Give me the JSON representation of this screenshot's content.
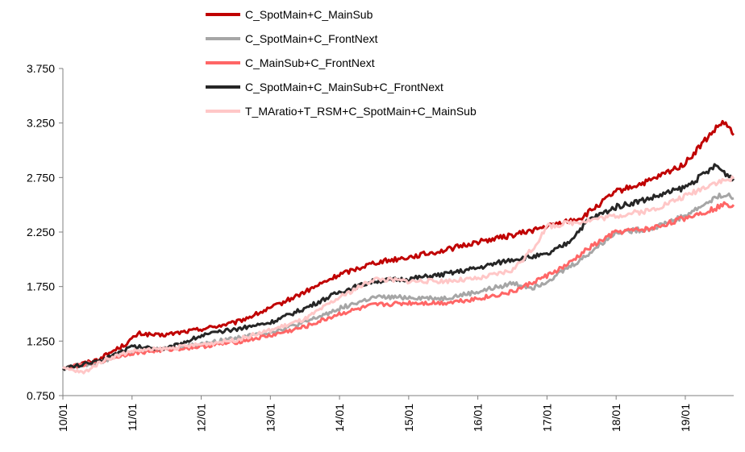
{
  "chart_data": {
    "type": "line",
    "title": "",
    "xlabel": "",
    "ylabel": "",
    "ylim": [
      0.75,
      3.75
    ],
    "xlim": [
      2010.0,
      2019.7
    ],
    "yticks": [
      0.75,
      1.25,
      1.75,
      2.25,
      2.75,
      3.25,
      3.75
    ],
    "ytick_labels": [
      "0.750",
      "1.250",
      "1.750",
      "2.250",
      "2.750",
      "3.250",
      "3.750"
    ],
    "xticks": [
      2010,
      2011,
      2012,
      2013,
      2014,
      2015,
      2016,
      2017,
      2018,
      2019
    ],
    "xtick_labels": [
      "10/01",
      "11/01",
      "12/01",
      "13/01",
      "14/01",
      "15/01",
      "16/01",
      "17/01",
      "18/01",
      "19/01"
    ],
    "grid": false,
    "legend": "top-center",
    "series": [
      {
        "name": "C_SpotMain+C_MainSub",
        "color": "#C00000",
        "x": [
          2010.0,
          2010.5,
          2010.9,
          2011.1,
          2011.4,
          2012.0,
          2012.5,
          2013.0,
          2013.5,
          2014.0,
          2014.5,
          2015.0,
          2015.5,
          2016.0,
          2016.5,
          2017.0,
          2017.5,
          2018.0,
          2018.5,
          2019.0,
          2019.3,
          2019.45,
          2019.55,
          2019.7
        ],
        "y": [
          1.0,
          1.08,
          1.22,
          1.32,
          1.3,
          1.36,
          1.42,
          1.55,
          1.7,
          1.86,
          1.97,
          2.02,
          2.08,
          2.16,
          2.22,
          2.3,
          2.38,
          2.62,
          2.72,
          2.88,
          3.1,
          3.2,
          3.26,
          3.14
        ]
      },
      {
        "name": "C_SpotMain+C_FrontNext",
        "color": "#A6A6A6",
        "x": [
          2010.0,
          2010.5,
          2011.0,
          2011.5,
          2012.0,
          2012.5,
          2013.0,
          2013.5,
          2014.0,
          2014.5,
          2015.0,
          2015.5,
          2016.0,
          2016.5,
          2016.8,
          2017.0,
          2017.5,
          2018.0,
          2018.5,
          2019.0,
          2019.4,
          2019.55,
          2019.7
        ],
        "y": [
          1.0,
          1.05,
          1.15,
          1.18,
          1.22,
          1.28,
          1.33,
          1.42,
          1.55,
          1.65,
          1.65,
          1.64,
          1.7,
          1.78,
          1.74,
          1.8,
          2.0,
          2.25,
          2.28,
          2.4,
          2.55,
          2.6,
          2.56
        ]
      },
      {
        "name": "C_MainSub+C_FrontNext",
        "color": "#FF6666",
        "x": [
          2010.0,
          2010.5,
          2011.0,
          2011.5,
          2012.0,
          2012.5,
          2013.0,
          2013.5,
          2014.0,
          2014.5,
          2015.0,
          2015.5,
          2016.0,
          2016.5,
          2017.0,
          2017.3,
          2017.6,
          2018.0,
          2018.5,
          2019.0,
          2019.4,
          2019.55,
          2019.7
        ],
        "y": [
          1.0,
          1.06,
          1.14,
          1.17,
          1.2,
          1.24,
          1.3,
          1.38,
          1.5,
          1.58,
          1.6,
          1.6,
          1.64,
          1.7,
          1.85,
          1.95,
          2.1,
          2.25,
          2.28,
          2.38,
          2.46,
          2.5,
          2.5
        ]
      },
      {
        "name": "C_SpotMain+C_MainSub+C_FrontNext",
        "color": "#262626",
        "x": [
          2010.0,
          2010.5,
          2011.0,
          2011.5,
          2012.0,
          2012.5,
          2013.0,
          2013.5,
          2014.0,
          2014.5,
          2015.0,
          2015.5,
          2016.0,
          2016.5,
          2017.0,
          2017.3,
          2017.6,
          2018.0,
          2018.5,
          2019.0,
          2019.45,
          2019.55,
          2019.7
        ],
        "y": [
          1.0,
          1.06,
          1.2,
          1.18,
          1.3,
          1.36,
          1.42,
          1.55,
          1.7,
          1.8,
          1.82,
          1.86,
          1.92,
          2.0,
          2.04,
          2.15,
          2.36,
          2.48,
          2.56,
          2.66,
          2.86,
          2.8,
          2.74
        ]
      },
      {
        "name": "T_MAratio+T_RSM+C_SpotMain+C_MainSub",
        "color": "#FFC7C7",
        "x": [
          2010.0,
          2010.3,
          2010.6,
          2011.0,
          2011.5,
          2012.0,
          2012.5,
          2013.0,
          2013.5,
          2014.0,
          2014.5,
          2015.0,
          2015.5,
          2016.0,
          2016.5,
          2016.8,
          2017.0,
          2017.5,
          2018.0,
          2018.5,
          2019.0,
          2019.4,
          2019.55,
          2019.7
        ],
        "y": [
          1.0,
          0.96,
          1.08,
          1.16,
          1.18,
          1.22,
          1.26,
          1.35,
          1.45,
          1.65,
          1.82,
          1.8,
          1.8,
          1.82,
          1.9,
          2.1,
          2.3,
          2.35,
          2.4,
          2.45,
          2.58,
          2.7,
          2.72,
          2.74
        ]
      }
    ]
  }
}
